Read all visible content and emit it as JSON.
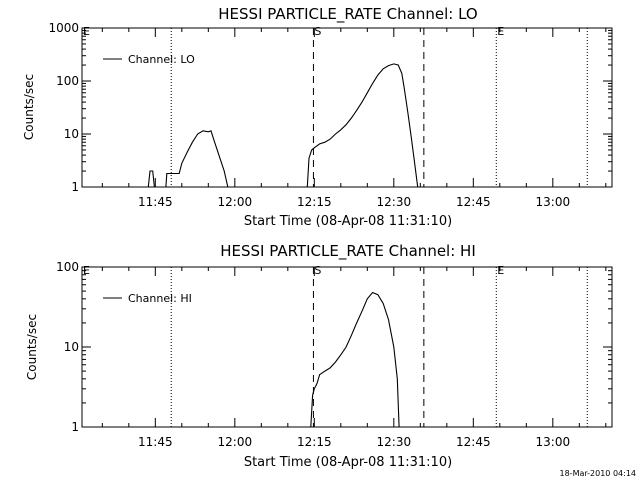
{
  "timestamp": "18-Mar-2010 04:14",
  "chart_data": [
    {
      "type": "line",
      "title": "HESSI PARTICLE_RATE Channel: LO",
      "xlabel": "Start Time (08-Apr-08 11:31:10)",
      "ylabel": "Counts/sec",
      "y_scale": "log",
      "ylim": [
        1,
        1000
      ],
      "y_ticks": [
        1,
        10,
        100,
        1000
      ],
      "y_tick_labels": [
        "1",
        "10",
        "100",
        "1000"
      ],
      "x_ticks": [
        "11:45",
        "12:00",
        "12:15",
        "12:30",
        "12:45",
        "13:00"
      ],
      "legend": {
        "position": "top-left",
        "label": "Channel: LO"
      },
      "markers": [
        {
          "time": "11:31:10",
          "label": "E",
          "style": "dotted"
        },
        {
          "time": "11:48:00",
          "label": "",
          "style": "dotted"
        },
        {
          "time": "12:14:50",
          "label": "S",
          "style": "dashed"
        },
        {
          "time": "12:35:40",
          "label": "",
          "style": "dashed"
        },
        {
          "time": "12:49:20",
          "label": "E",
          "style": "dotted"
        },
        {
          "time": "13:06:30",
          "label": "",
          "style": "dotted"
        }
      ],
      "series": [
        {
          "name": "Channel: LO",
          "points": [
            [
              "11:43:40",
              1
            ],
            [
              "11:44:00",
              2
            ],
            [
              "11:44:30",
              2
            ],
            [
              "11:44:50",
              1
            ],
            [
              "11:47:00",
              1
            ],
            [
              "11:47:10",
              1.8
            ],
            [
              "11:49:30",
              1.8
            ],
            [
              "11:50:00",
              2.8
            ],
            [
              "11:51:00",
              4.5
            ],
            [
              "11:52:00",
              7
            ],
            [
              "11:53:00",
              10
            ],
            [
              "11:54:00",
              11.5
            ],
            [
              "11:55:00",
              11
            ],
            [
              "11:55:30",
              11.5
            ],
            [
              "11:56:00",
              8
            ],
            [
              "11:57:00",
              4
            ],
            [
              "11:58:00",
              2
            ],
            [
              "11:58:40",
              1
            ],
            [
              "12:13:40",
              1
            ],
            [
              "12:14:00",
              3.5
            ],
            [
              "12:14:30",
              5
            ],
            [
              "12:15:00",
              5.5
            ],
            [
              "12:16:00",
              6.5
            ],
            [
              "12:17:00",
              7
            ],
            [
              "12:18:00",
              8
            ],
            [
              "12:19:00",
              10
            ],
            [
              "12:20:00",
              12
            ],
            [
              "12:21:00",
              15
            ],
            [
              "12:22:00",
              20
            ],
            [
              "12:23:00",
              28
            ],
            [
              "12:24:00",
              40
            ],
            [
              "12:25:00",
              60
            ],
            [
              "12:26:00",
              90
            ],
            [
              "12:27:00",
              130
            ],
            [
              "12:28:00",
              170
            ],
            [
              "12:29:00",
              195
            ],
            [
              "12:30:00",
              210
            ],
            [
              "12:30:50",
              200
            ],
            [
              "12:31:30",
              140
            ],
            [
              "12:32:00",
              70
            ],
            [
              "12:32:40",
              25
            ],
            [
              "12:33:20",
              8
            ],
            [
              "12:34:00",
              2.5
            ],
            [
              "12:34:30",
              1
            ]
          ]
        }
      ]
    },
    {
      "type": "line",
      "title": "HESSI PARTICLE_RATE Channel: HI",
      "xlabel": "Start Time (08-Apr-08 11:31:10)",
      "ylabel": "Counts/sec",
      "y_scale": "log",
      "ylim": [
        1,
        100
      ],
      "y_ticks": [
        1,
        10,
        100
      ],
      "y_tick_labels": [
        "1",
        "10",
        "100"
      ],
      "x_ticks": [
        "11:45",
        "12:00",
        "12:15",
        "12:30",
        "12:45",
        "13:00"
      ],
      "legend": {
        "position": "top-left",
        "label": "Channel: HI"
      },
      "markers": [
        {
          "time": "11:31:10",
          "label": "E",
          "style": "dotted"
        },
        {
          "time": "11:48:00",
          "label": "",
          "style": "dotted"
        },
        {
          "time": "12:14:50",
          "label": "S",
          "style": "dashed"
        },
        {
          "time": "12:35:40",
          "label": "",
          "style": "dashed"
        },
        {
          "time": "12:49:20",
          "label": "E",
          "style": "dotted"
        },
        {
          "time": "13:06:30",
          "label": "",
          "style": "dotted"
        }
      ],
      "series": [
        {
          "name": "Channel: HI",
          "points": [
            [
              "12:14:20",
              1
            ],
            [
              "12:14:40",
              2.5
            ],
            [
              "12:15:00",
              3
            ],
            [
              "12:15:30",
              3.5
            ],
            [
              "12:16:00",
              4.5
            ],
            [
              "12:17:00",
              5
            ],
            [
              "12:18:00",
              5.5
            ],
            [
              "12:19:00",
              6.5
            ],
            [
              "12:20:00",
              8
            ],
            [
              "12:21:00",
              10
            ],
            [
              "12:22:00",
              14
            ],
            [
              "12:23:00",
              20
            ],
            [
              "12:24:00",
              28
            ],
            [
              "12:25:00",
              40
            ],
            [
              "12:26:00",
              48
            ],
            [
              "12:27:00",
              45
            ],
            [
              "12:28:00",
              35
            ],
            [
              "12:29:00",
              22
            ],
            [
              "12:30:00",
              10
            ],
            [
              "12:30:40",
              4
            ],
            [
              "12:31:00",
              1
            ]
          ]
        }
      ]
    }
  ]
}
